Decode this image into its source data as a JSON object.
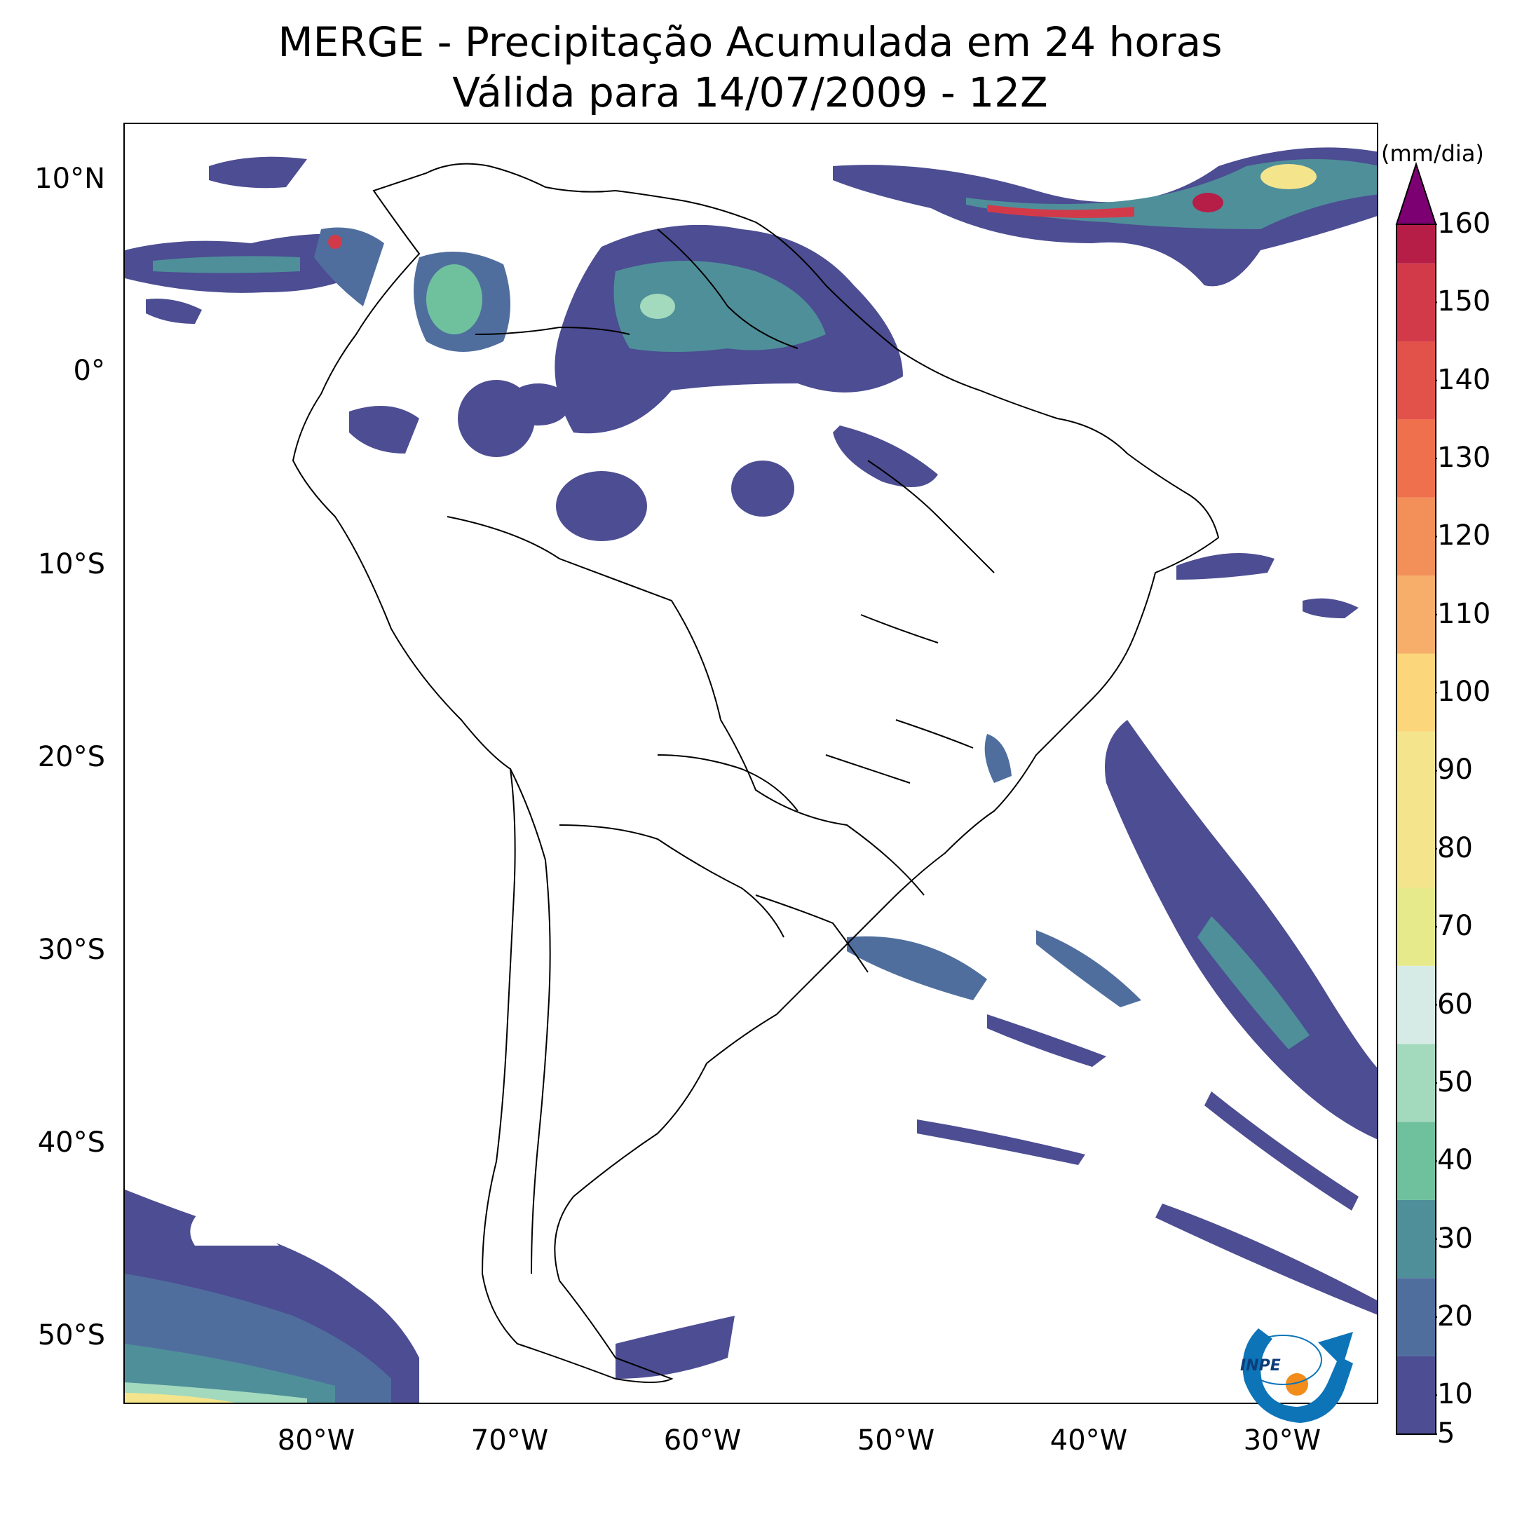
{
  "title": {
    "line1": "MERGE - Precipitação Acumulada em 24 horas",
    "line2": "Válida para 14/07/2009 - 12Z"
  },
  "map": {
    "lon_range": [
      -90,
      -25
    ],
    "lat_range": [
      -56,
      13
    ],
    "lat_ticks": [
      {
        "value": 10,
        "label": "10°N"
      },
      {
        "value": 0,
        "label": "0°"
      },
      {
        "value": -10,
        "label": "10°S"
      },
      {
        "value": -20,
        "label": "20°S"
      },
      {
        "value": -30,
        "label": "30°S"
      },
      {
        "value": -40,
        "label": "40°S"
      },
      {
        "value": -50,
        "label": "50°S"
      }
    ],
    "lon_ticks": [
      {
        "value": -80,
        "label": "80°W"
      },
      {
        "value": -70,
        "label": "70°W"
      },
      {
        "value": -60,
        "label": "60°W"
      },
      {
        "value": -50,
        "label": "50°W"
      },
      {
        "value": -40,
        "label": "40°W"
      },
      {
        "value": -30,
        "label": "30°W"
      }
    ]
  },
  "colorbar": {
    "unit": "(mm/dia)",
    "min": 5,
    "max": 160,
    "extend": "max",
    "ticks": [
      5,
      10,
      20,
      30,
      40,
      50,
      60,
      70,
      80,
      90,
      100,
      110,
      120,
      130,
      140,
      150,
      160
    ],
    "bands": [
      {
        "from": 5,
        "to": 15,
        "color": "#4c4d92"
      },
      {
        "from": 15,
        "to": 25,
        "color": "#4f6e9e"
      },
      {
        "from": 25,
        "to": 35,
        "color": "#4f8f9a"
      },
      {
        "from": 35,
        "to": 45,
        "color": "#6fc19e"
      },
      {
        "from": 45,
        "to": 55,
        "color": "#a3d9bd"
      },
      {
        "from": 55,
        "to": 65,
        "color": "#d7ebe6"
      },
      {
        "from": 65,
        "to": 75,
        "color": "#e6ea8b"
      },
      {
        "from": 75,
        "to": 95,
        "color": "#f4e58d"
      },
      {
        "from": 95,
        "to": 105,
        "color": "#fbd67a"
      },
      {
        "from": 105,
        "to": 115,
        "color": "#f6ae6a"
      },
      {
        "from": 115,
        "to": 125,
        "color": "#f38f58"
      },
      {
        "from": 125,
        "to": 135,
        "color": "#ef704c"
      },
      {
        "from": 135,
        "to": 145,
        "color": "#e3524a"
      },
      {
        "from": 145,
        "to": 155,
        "color": "#d23a4a"
      },
      {
        "from": 155,
        "to": 160,
        "color": "#b61e48"
      }
    ],
    "extend_color": "#7d0072"
  },
  "logo": {
    "text": "INPE"
  }
}
